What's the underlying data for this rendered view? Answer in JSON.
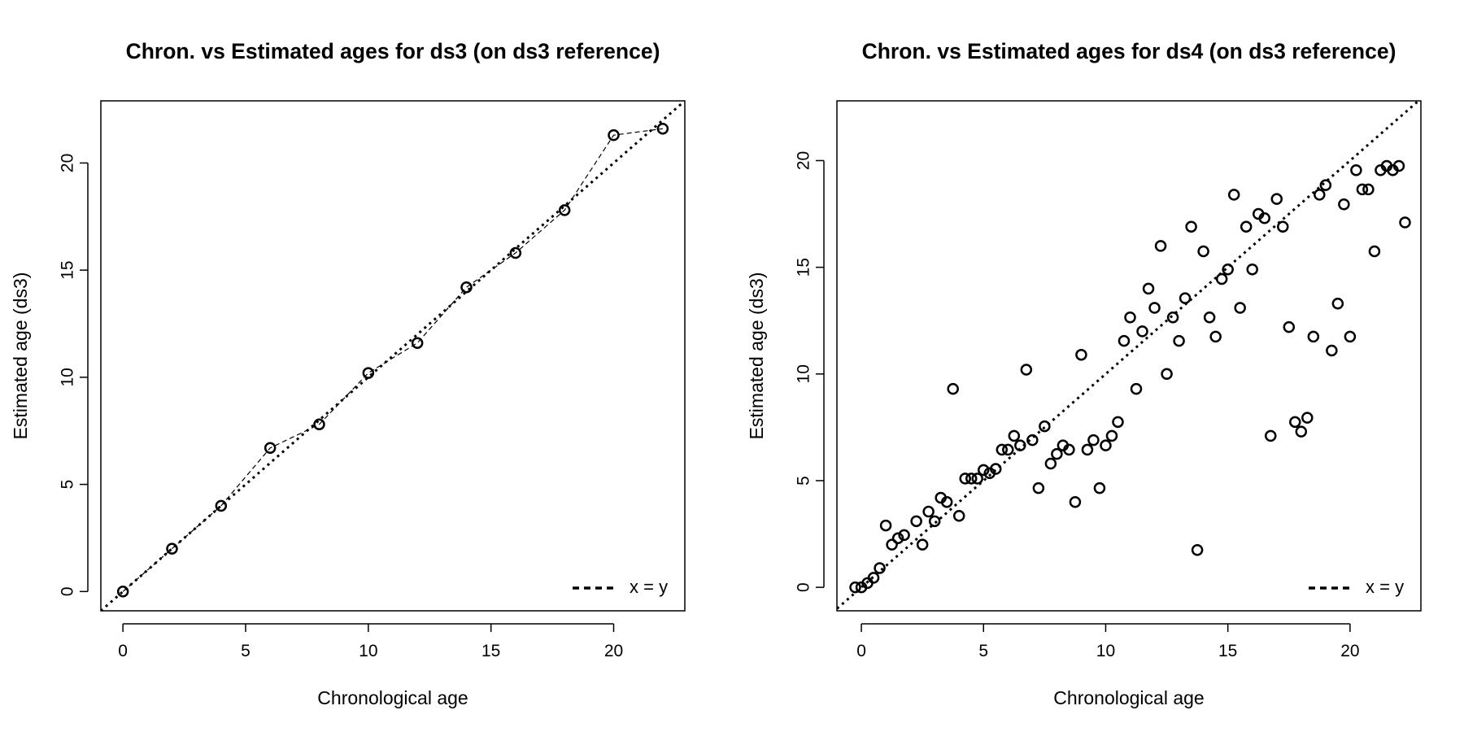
{
  "chart_data": [
    {
      "type": "scatter",
      "title": "Chron. vs Estimated ages for ds3 (on ds3 reference)",
      "xlabel": "Chronological age",
      "ylabel": "Estimated age (ds3)",
      "xlim": [
        -0.9,
        22.9
      ],
      "ylim": [
        -0.9,
        22.9
      ],
      "xticks": [
        0,
        5,
        10,
        15,
        20
      ],
      "yticks": [
        0,
        5,
        10,
        15,
        20
      ],
      "grid": false,
      "connect_points": true,
      "reference_line": {
        "label": "x = y",
        "slope": 1,
        "intercept": 0,
        "style": "dotted"
      },
      "legend_position": "bottom-right",
      "series": [
        {
          "x": [
            0,
            2,
            4,
            6,
            8,
            10,
            12,
            14,
            16,
            18,
            20,
            22
          ],
          "y": [
            0.0,
            2.0,
            4.0,
            6.7,
            7.8,
            10.2,
            11.6,
            14.2,
            15.8,
            17.8,
            21.3,
            21.6
          ]
        }
      ]
    },
    {
      "type": "scatter",
      "title": "Chron. vs Estimated ages for ds4 (on ds3 reference)",
      "xlabel": "Chronological age",
      "ylabel": "Estimated age (ds3)",
      "xlim": [
        -1.0,
        22.9
      ],
      "ylim": [
        -1.1,
        22.8
      ],
      "xticks": [
        0,
        5,
        10,
        15,
        20
      ],
      "yticks": [
        0,
        5,
        10,
        15,
        20
      ],
      "grid": false,
      "connect_points": false,
      "reference_line": {
        "label": "x = y",
        "slope": 1,
        "intercept": 0,
        "style": "dotted"
      },
      "legend_position": "bottom-right",
      "series": [
        {
          "x": [
            -0.25,
            0,
            0.25,
            0.5,
            0.75,
            1.0,
            1.25,
            1.5,
            1.75,
            2.25,
            2.5,
            2.75,
            3.0,
            3.25,
            3.5,
            3.75,
            4.0,
            4.25,
            4.5,
            4.75,
            5.0,
            5.25,
            5.5,
            5.75,
            6.0,
            6.25,
            6.5,
            6.75,
            7.0,
            7.25,
            7.5,
            7.75,
            8.0,
            8.25,
            8.5,
            8.75,
            9.0,
            9.25,
            9.5,
            9.75,
            10.0,
            10.25,
            10.5,
            10.75,
            11.0,
            11.25,
            11.5,
            11.75,
            12.0,
            12.25,
            12.5,
            12.75,
            13.0,
            13.25,
            13.5,
            13.75,
            14.0,
            14.25,
            14.5,
            14.75,
            15.0,
            15.25,
            15.5,
            15.75,
            16.0,
            16.25,
            16.5,
            16.75,
            17.0,
            17.25,
            17.5,
            17.75,
            18.0,
            18.25,
            18.5,
            18.75,
            19.0,
            19.25,
            19.5,
            19.75,
            20.0,
            20.25,
            20.5,
            20.75,
            21.0,
            21.25,
            21.5,
            21.75,
            22.0,
            22.25
          ],
          "y": [
            0.0,
            0.0,
            0.2,
            0.45,
            0.9,
            2.9,
            2.0,
            2.3,
            2.45,
            3.1,
            2.0,
            3.55,
            3.1,
            4.2,
            4.0,
            9.3,
            3.35,
            5.1,
            5.1,
            5.1,
            5.5,
            5.35,
            5.55,
            6.45,
            6.45,
            7.1,
            6.65,
            10.2,
            6.9,
            4.65,
            7.55,
            5.8,
            6.25,
            6.65,
            6.45,
            4.0,
            10.9,
            6.45,
            6.9,
            4.65,
            6.65,
            7.1,
            7.75,
            11.55,
            12.65,
            9.3,
            12.0,
            14.0,
            13.1,
            16.0,
            10.0,
            12.65,
            11.55,
            13.55,
            16.9,
            1.75,
            15.75,
            12.65,
            11.75,
            14.45,
            14.9,
            18.4,
            13.1,
            16.9,
            14.9,
            17.5,
            17.3,
            7.1,
            18.2,
            16.9,
            12.2,
            7.75,
            7.3,
            7.95,
            11.75,
            18.4,
            18.85,
            11.1,
            13.3,
            17.95,
            11.75,
            19.55,
            18.65,
            18.65,
            15.75,
            19.55,
            19.75,
            19.55,
            19.75,
            17.1
          ]
        }
      ]
    }
  ]
}
